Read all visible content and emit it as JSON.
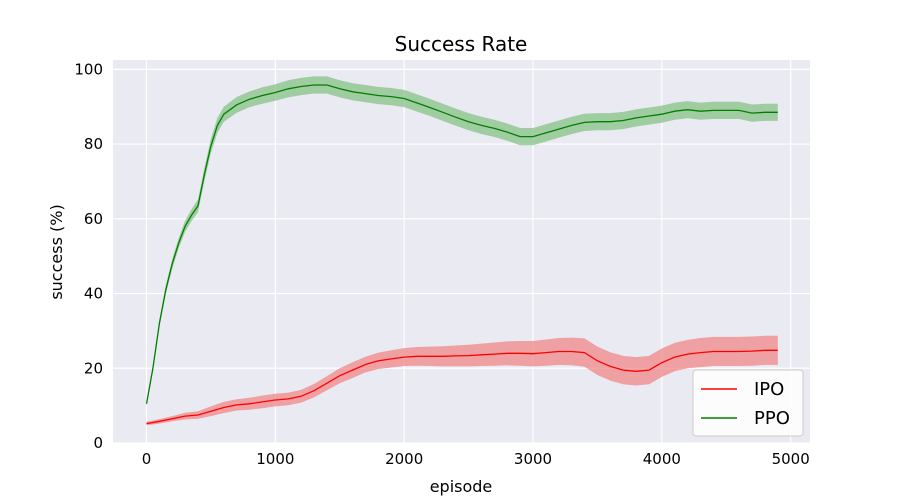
{
  "chart_data": {
    "type": "line",
    "title": "Success Rate",
    "xlabel": "episode",
    "ylabel": "success (%)",
    "xlim": [
      -260,
      5150
    ],
    "ylim": [
      0,
      102.5
    ],
    "x_ticks": [
      0,
      1000,
      2000,
      3000,
      4000,
      5000
    ],
    "y_ticks": [
      0,
      20,
      40,
      60,
      80,
      100
    ],
    "x_tick_labels": [
      "0",
      "1000",
      "2000",
      "3000",
      "4000",
      "5000"
    ],
    "y_tick_labels": [
      "0",
      "20",
      "40",
      "60",
      "80",
      "100"
    ],
    "grid": true,
    "legend_position": "bottom-right",
    "series": [
      {
        "name": "IPO",
        "color": "#ff0000",
        "band_color": "#f08080",
        "x": [
          0,
          100,
          200,
          300,
          400,
          500,
          600,
          700,
          800,
          900,
          1000,
          1100,
          1200,
          1300,
          1400,
          1500,
          1600,
          1700,
          1800,
          1900,
          2000,
          2100,
          2200,
          2300,
          2400,
          2500,
          2600,
          2700,
          2800,
          2900,
          3000,
          3100,
          3200,
          3300,
          3400,
          3500,
          3600,
          3700,
          3800,
          3900,
          4000,
          4100,
          4200,
          4300,
          4400,
          4500,
          4600,
          4700,
          4800,
          4900
        ],
        "values": [
          5.2,
          5.8,
          6.5,
          7.2,
          7.5,
          8.5,
          9.5,
          10.2,
          10.5,
          11.0,
          11.5,
          11.8,
          12.5,
          14.0,
          16.0,
          18.0,
          19.5,
          21.0,
          22.0,
          22.5,
          23.0,
          23.2,
          23.2,
          23.2,
          23.3,
          23.4,
          23.6,
          23.8,
          24.0,
          24.0,
          23.9,
          24.2,
          24.5,
          24.5,
          24.2,
          22.0,
          20.5,
          19.5,
          19.2,
          19.5,
          21.5,
          23.0,
          23.8,
          24.2,
          24.5,
          24.5,
          24.5,
          24.6,
          24.8,
          24.8
        ],
        "lower": [
          4.7,
          5.2,
          5.8,
          6.3,
          6.5,
          7.2,
          8.0,
          8.7,
          8.9,
          9.3,
          9.8,
          10.1,
          10.8,
          12.2,
          14.1,
          16.0,
          17.4,
          18.9,
          19.8,
          20.2,
          20.6,
          20.7,
          20.6,
          20.5,
          20.5,
          20.5,
          20.6,
          20.7,
          20.8,
          20.7,
          20.5,
          20.7,
          20.9,
          20.8,
          20.4,
          18.2,
          16.7,
          15.7,
          15.4,
          15.7,
          17.7,
          19.2,
          20.0,
          20.3,
          20.6,
          20.6,
          20.6,
          20.7,
          20.9,
          20.9
        ],
        "upper": [
          5.7,
          6.4,
          7.2,
          8.1,
          8.5,
          9.8,
          11.0,
          11.7,
          12.1,
          12.7,
          13.2,
          13.5,
          14.2,
          15.8,
          17.9,
          20.0,
          21.6,
          23.1,
          24.2,
          24.8,
          25.4,
          25.7,
          25.8,
          25.9,
          26.1,
          26.3,
          26.6,
          26.9,
          27.2,
          27.3,
          27.3,
          27.7,
          28.1,
          28.2,
          28.0,
          25.8,
          24.3,
          23.3,
          23.0,
          23.3,
          25.3,
          26.8,
          27.6,
          28.1,
          28.4,
          28.4,
          28.4,
          28.5,
          28.7,
          28.7
        ]
      },
      {
        "name": "PPO",
        "color": "#008000",
        "band_color": "#7fbf7f",
        "x": [
          0,
          50,
          100,
          150,
          200,
          250,
          300,
          350,
          400,
          450,
          500,
          550,
          600,
          700,
          800,
          900,
          1000,
          1100,
          1200,
          1300,
          1400,
          1500,
          1600,
          1700,
          1800,
          1900,
          2000,
          2100,
          2200,
          2300,
          2400,
          2500,
          2600,
          2700,
          2800,
          2900,
          3000,
          3100,
          3200,
          3300,
          3400,
          3500,
          3600,
          3700,
          3800,
          3900,
          4000,
          4100,
          4200,
          4300,
          4400,
          4500,
          4600,
          4700,
          4800,
          4900
        ],
        "values": [
          10.5,
          20.0,
          32.0,
          41.0,
          48.0,
          53.5,
          58.0,
          61.0,
          63.5,
          72.0,
          79.5,
          85.0,
          88.0,
          90.5,
          92.0,
          93.0,
          93.8,
          94.8,
          95.4,
          95.8,
          95.8,
          94.8,
          94.0,
          93.5,
          93.0,
          92.7,
          92.2,
          91.0,
          89.8,
          88.5,
          87.2,
          86.0,
          85.0,
          84.2,
          83.2,
          82.0,
          82.0,
          83.0,
          84.0,
          85.0,
          85.8,
          86.0,
          86.0,
          86.3,
          87.0,
          87.5,
          88.0,
          88.8,
          89.2,
          88.8,
          89.0,
          89.0,
          89.0,
          88.3,
          88.5,
          88.5
        ],
        "lower": [
          10.0,
          19.3,
          31.0,
          39.8,
          46.7,
          52.1,
          56.5,
          59.4,
          61.8,
          70.2,
          77.6,
          83.0,
          86.0,
          88.4,
          89.9,
          90.8,
          91.6,
          92.5,
          93.1,
          93.5,
          93.5,
          92.5,
          91.7,
          91.2,
          90.7,
          90.4,
          89.9,
          88.7,
          87.5,
          86.2,
          84.9,
          83.7,
          82.7,
          81.9,
          80.9,
          79.7,
          79.7,
          80.7,
          81.7,
          82.7,
          83.5,
          83.7,
          83.7,
          84.0,
          84.7,
          85.2,
          85.7,
          86.5,
          86.9,
          86.5,
          86.7,
          86.7,
          86.7,
          86.0,
          86.2,
          86.2
        ],
        "upper": [
          11.0,
          20.7,
          33.0,
          42.2,
          49.3,
          54.9,
          59.5,
          62.6,
          65.2,
          73.8,
          81.4,
          87.0,
          90.0,
          92.6,
          94.1,
          95.2,
          96.0,
          97.1,
          97.7,
          98.1,
          98.1,
          97.1,
          96.3,
          95.8,
          95.3,
          95.0,
          94.5,
          93.3,
          92.1,
          90.8,
          89.5,
          88.3,
          87.3,
          86.5,
          85.5,
          84.3,
          84.3,
          85.3,
          86.3,
          87.3,
          88.1,
          88.3,
          88.3,
          88.6,
          89.3,
          89.8,
          90.3,
          91.1,
          91.5,
          91.1,
          91.3,
          91.3,
          91.3,
          90.6,
          90.8,
          90.8
        ]
      }
    ]
  }
}
